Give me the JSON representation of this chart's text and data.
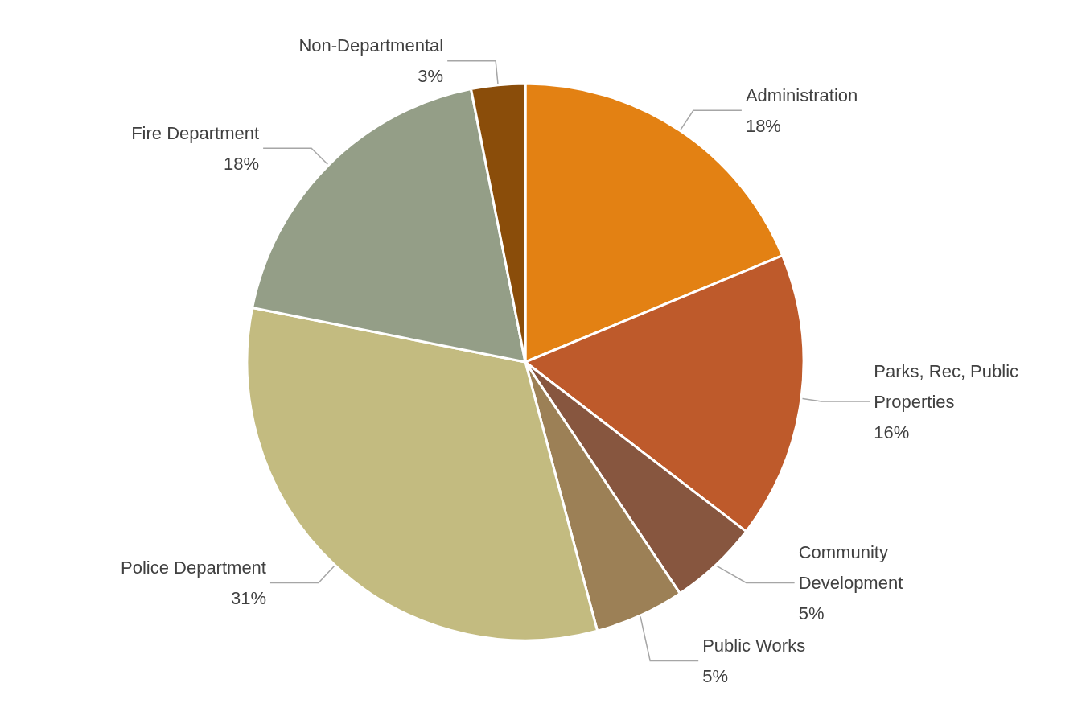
{
  "chart_data": {
    "type": "pie",
    "categories": [
      "Administration",
      "Parks, Rec, Public Properties",
      "Community Development",
      "Public Works",
      "Police Department",
      "Fire Department",
      "Non-Departmental"
    ],
    "values": [
      18,
      16,
      5,
      5,
      31,
      18,
      3
    ],
    "value_labels": [
      "18%",
      "16%",
      "5%",
      "5%",
      "31%",
      "18%",
      "3%"
    ],
    "colors": [
      "#e38113",
      "#be5a2b",
      "#87563f",
      "#9c8056",
      "#c3bb80",
      "#949e87",
      "#8a4d0a"
    ],
    "legend": false
  }
}
